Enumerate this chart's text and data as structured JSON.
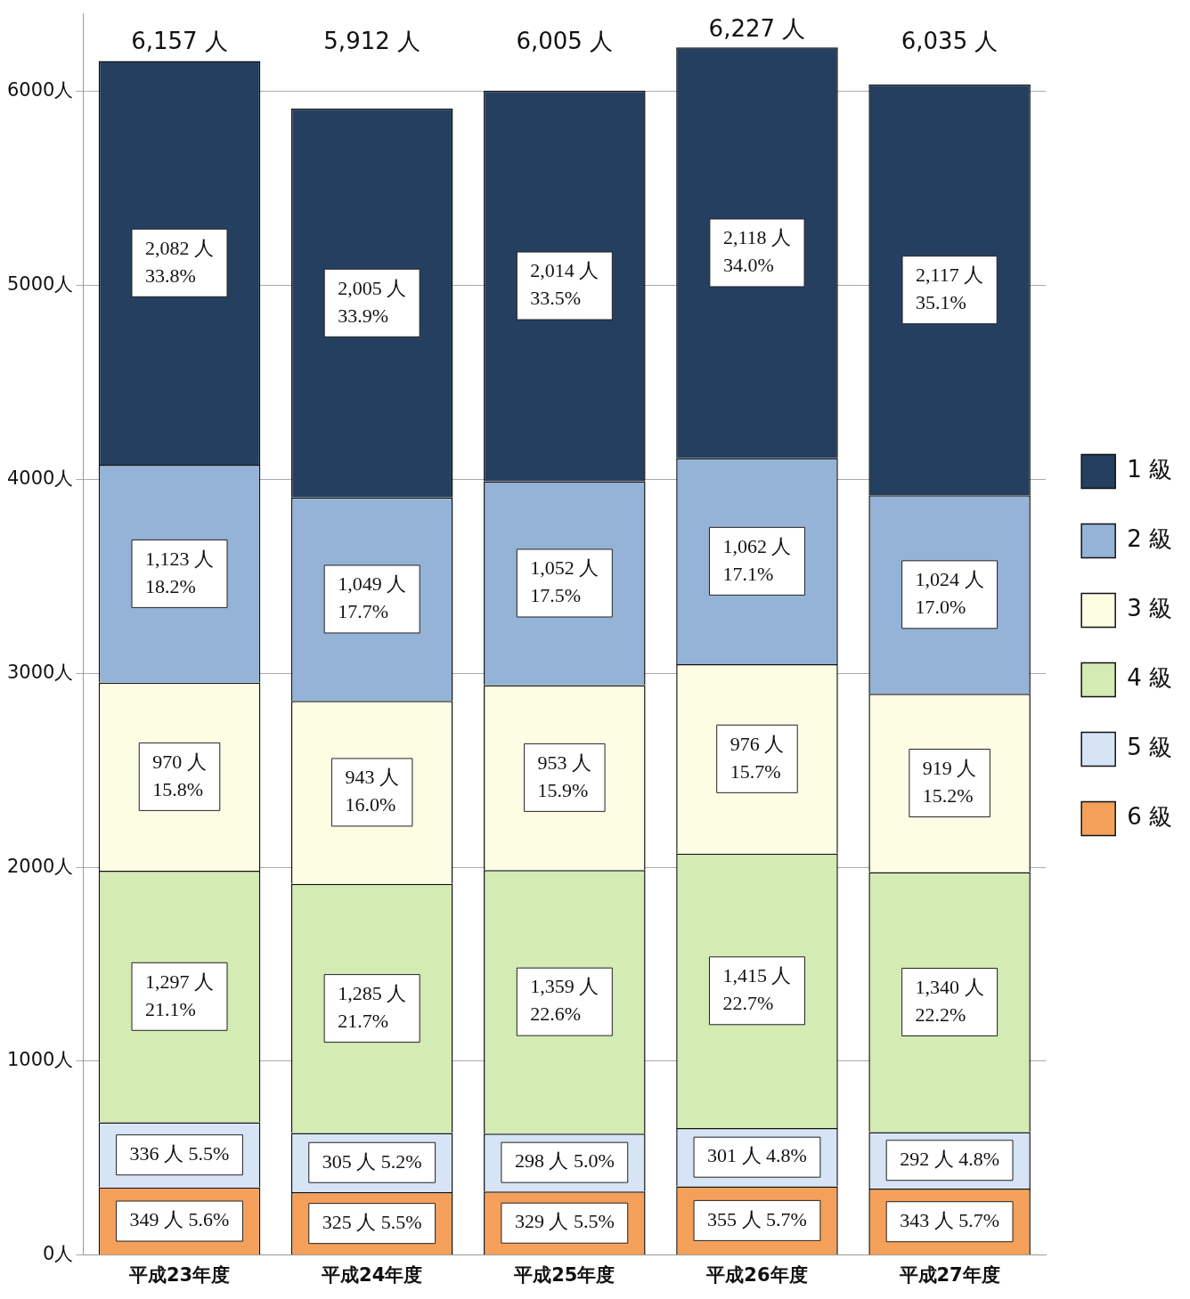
{
  "chart_data": {
    "type": "bar",
    "stacked": true,
    "categories": [
      "平成23年度",
      "平成24年度",
      "平成25年度",
      "平成26年度",
      "平成27年度"
    ],
    "series": [
      {
        "name": "6 級",
        "color": "#f5a05a",
        "values": [
          349,
          325,
          329,
          355,
          343
        ],
        "value_labels": [
          "349 人 5.6%",
          "325 人 5.5%",
          "329 人 5.5%",
          "355 人 5.7%",
          "343 人 5.7%"
        ]
      },
      {
        "name": "5 級",
        "color": "#d6e4f5",
        "values": [
          336,
          305,
          298,
          301,
          292
        ],
        "value_labels": [
          "336 人 5.5%",
          "305 人 5.2%",
          "298 人 5.0%",
          "301 人 4.8%",
          "292 人 4.8%"
        ]
      },
      {
        "name": "4 級",
        "color": "#d4ebb4",
        "values": [
          1297,
          1285,
          1359,
          1415,
          1340
        ],
        "value_labels": [
          "1,297 人\n21.1%",
          "1,285 人\n21.7%",
          "1,359 人\n22.6%",
          "1,415 人\n22.7%",
          "1,340 人\n22.2%"
        ]
      },
      {
        "name": "3 級",
        "color": "#fdfde4",
        "values": [
          970,
          943,
          953,
          976,
          919
        ],
        "value_labels": [
          "970 人\n15.8%",
          "943 人\n16.0%",
          "953 人\n15.9%",
          "976 人\n15.7%",
          "919 人\n15.2%"
        ]
      },
      {
        "name": "2 級",
        "color": "#95b3d7",
        "values": [
          1123,
          1049,
          1052,
          1062,
          1024
        ],
        "value_labels": [
          "1,123 人\n18.2%",
          "1,049 人\n17.7%",
          "1,052 人\n17.5%",
          "1,062 人\n17.1%",
          "1,024 人\n17.0%"
        ]
      },
      {
        "name": "1 級",
        "color": "#243f60",
        "values": [
          2082,
          2005,
          2014,
          2118,
          2117
        ],
        "value_labels": [
          "2,082 人\n33.8%",
          "2,005 人\n33.9%",
          "2,014 人\n33.5%",
          "2,118 人\n34.0%",
          "2,117 人\n35.1%"
        ]
      }
    ],
    "totals": [
      "6,157 人",
      "5,912 人",
      "6,005 人",
      "6,227 人",
      "6,035 人"
    ],
    "ylim": [
      0,
      6400
    ],
    "yticks": [
      {
        "value": 0,
        "label": "0人"
      },
      {
        "value": 1000,
        "label": "1000人"
      },
      {
        "value": 2000,
        "label": "2000人"
      },
      {
        "value": 3000,
        "label": "3000人"
      },
      {
        "value": 4000,
        "label": "4000人"
      },
      {
        "value": 5000,
        "label": "5000人"
      },
      {
        "value": 6000,
        "label": "6000人"
      }
    ],
    "grid": "y",
    "legend": "right"
  }
}
